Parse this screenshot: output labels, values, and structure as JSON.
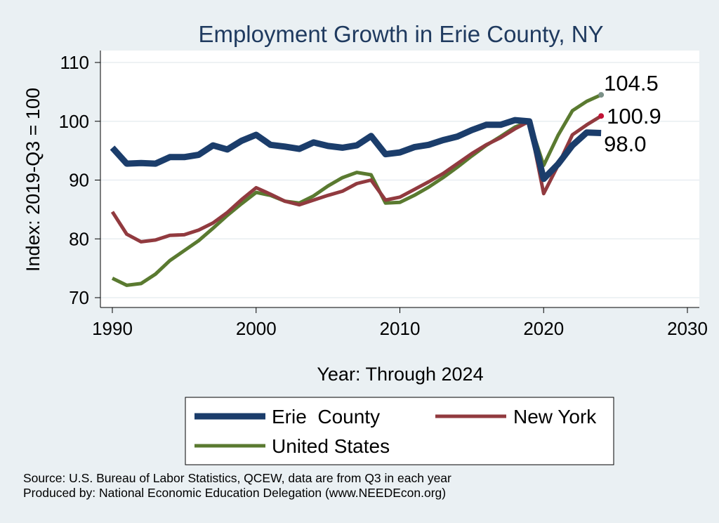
{
  "chart_data": {
    "type": "line",
    "title": "Employment Growth in Erie County, NY",
    "xlabel": "Year: Through 2024",
    "ylabel": "Index: 2019-Q3 = 100",
    "xlim": [
      1990,
      2030
    ],
    "ylim": [
      70,
      110
    ],
    "x_ticks": [
      1990,
      2000,
      2010,
      2020,
      2030
    ],
    "y_ticks": [
      70,
      80,
      90,
      100,
      110
    ],
    "grid": true,
    "legend_position": "bottom",
    "x": [
      1990,
      1991,
      1992,
      1993,
      1994,
      1995,
      1996,
      1997,
      1998,
      1999,
      2000,
      2001,
      2002,
      2003,
      2004,
      2005,
      2006,
      2007,
      2008,
      2009,
      2010,
      2011,
      2012,
      2013,
      2014,
      2015,
      2016,
      2017,
      2018,
      2019,
      2020,
      2021,
      2022,
      2023,
      2024
    ],
    "series": [
      {
        "name": "Erie  County",
        "color": "#1b3d6b",
        "values": [
          95.5,
          92.8,
          92.9,
          92.8,
          93.9,
          93.9,
          94.3,
          95.9,
          95.2,
          96.7,
          97.7,
          96.0,
          95.7,
          95.3,
          96.4,
          95.8,
          95.5,
          95.9,
          97.5,
          94.4,
          94.7,
          95.6,
          96.0,
          96.8,
          97.4,
          98.5,
          99.4,
          99.4,
          100.2,
          100.0,
          90.2,
          92.7,
          95.9,
          98.1,
          98.0
        ],
        "end_label": "98.0"
      },
      {
        "name": "New York",
        "color": "#913a3f",
        "values": [
          84.6,
          80.8,
          79.5,
          79.8,
          80.6,
          80.7,
          81.5,
          82.7,
          84.5,
          86.7,
          88.7,
          87.6,
          86.4,
          85.8,
          86.6,
          87.4,
          88.1,
          89.4,
          90.0,
          86.6,
          87.1,
          88.4,
          89.7,
          91.1,
          92.8,
          94.5,
          96.0,
          97.2,
          98.7,
          100.0,
          87.7,
          92.5,
          97.7,
          99.4,
          100.9
        ],
        "end_label": "100.9"
      },
      {
        "name": "United States",
        "color": "#5a7a30",
        "values": [
          73.3,
          72.1,
          72.4,
          74.0,
          76.3,
          78.0,
          79.7,
          81.8,
          84.0,
          86.0,
          87.9,
          87.4,
          86.4,
          86.1,
          87.3,
          89.0,
          90.4,
          91.3,
          90.9,
          86.1,
          86.2,
          87.4,
          88.8,
          90.4,
          92.2,
          94.1,
          95.9,
          97.4,
          99.0,
          100.0,
          92.5,
          97.6,
          101.8,
          103.4,
          104.5
        ],
        "end_label": "104.5"
      }
    ],
    "end_markers": [
      {
        "series": "United States",
        "color": "#7b9088"
      },
      {
        "series": "New York",
        "color": "#c21336"
      }
    ]
  },
  "footer": {
    "source": "Source: U.S. Bureau of Labor Statistics, QCEW, data are from Q3 in each year",
    "produced": "Produced by: National Economic Education Delegation (www.NEEDEcon.org)"
  }
}
